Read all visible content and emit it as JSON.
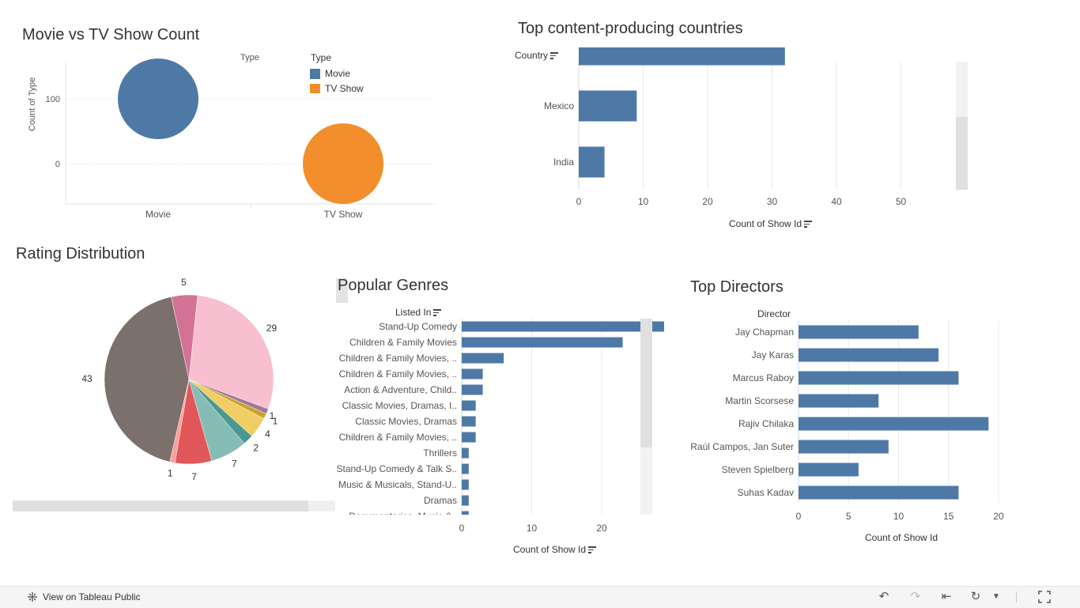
{
  "footer": {
    "link_label": "View on Tableau Public"
  },
  "colors": {
    "blue": "#4e79a7",
    "orange": "#f28e2b",
    "grid": "#e8e8e8",
    "scroll": "#e0e0e0"
  },
  "chart_data": [
    {
      "id": "movie_tv",
      "type": "scatter",
      "title": "Movie vs TV Show Count",
      "categories": [
        "Movie",
        "TV Show"
      ],
      "values": [
        100,
        0
      ],
      "ylabel": "Count of Type",
      "yticks": [
        100,
        0
      ],
      "ylim": [
        -60,
        160
      ],
      "legend_title_clipped": "Type",
      "legend": {
        "title": "Type",
        "items": [
          {
            "label": "Movie",
            "color": "#4e79a7"
          },
          {
            "label": "TV Show",
            "color": "#f28e2b"
          }
        ]
      }
    },
    {
      "id": "countries",
      "type": "bar",
      "title": "Top content-producing countries",
      "row_header": "Country",
      "categories": [
        "",
        "Mexico",
        "India"
      ],
      "values": [
        32,
        9,
        4
      ],
      "xlabel": "Count of Show Id",
      "xticks": [
        0,
        10,
        20,
        30,
        40,
        50
      ],
      "xlim": [
        0,
        58
      ]
    },
    {
      "id": "ratings",
      "type": "pie",
      "title": "Rating Distribution",
      "slices": [
        {
          "value": 43,
          "label": "43",
          "color": "#7b706c"
        },
        {
          "value": 5,
          "label": "5",
          "color": "#d37295"
        },
        {
          "value": 29,
          "label": "29",
          "color": "#f8bfd1"
        },
        {
          "value": 1,
          "label": "1",
          "color": "#a0799a"
        },
        {
          "value": 1,
          "label": "1",
          "color": "#c8a32a"
        },
        {
          "value": 4,
          "label": "4",
          "color": "#f1ce63"
        },
        {
          "value": 2,
          "label": "2",
          "color": "#499894"
        },
        {
          "value": 7,
          "label": "7",
          "color": "#86bcb6"
        },
        {
          "value": 7,
          "label": "7",
          "color": "#e15759"
        },
        {
          "value": 1,
          "label": "1",
          "color": "#ff9d9a"
        }
      ]
    },
    {
      "id": "genres",
      "type": "bar",
      "title": "Popular Genres",
      "row_header": "Listed In",
      "categories": [
        "Stand-Up Comedy",
        "Children & Family Movies",
        "Children & Family Movies, ..",
        "Children & Family Movies, ..",
        "Action & Adventure, Child..",
        "Classic Movies, Dramas, I..",
        "Classic Movies, Dramas",
        "Children & Family Movies, ..",
        "Thrillers",
        "Stand-Up Comedy & Talk S..",
        "Music & Musicals, Stand-U..",
        "Dramas",
        "Documentaries, Music &.."
      ],
      "values": [
        48,
        23,
        6,
        3,
        3,
        2,
        2,
        2,
        1,
        1,
        1,
        1,
        1
      ],
      "xlabel": "Count of Show Id",
      "xticks": [
        0,
        10,
        20,
        30,
        40,
        50
      ],
      "xlim": [
        0,
        54
      ]
    },
    {
      "id": "directors",
      "type": "bar",
      "title": "Top Directors",
      "row_header": "Director",
      "categories": [
        "Jay Chapman",
        "Jay Karas",
        "Marcus Raboy",
        "Martin Scorsese",
        "Rajiv Chilaka",
        "Raúl Campos, Jan Suter",
        "Steven Spielberg",
        "Suhas Kadav"
      ],
      "values": [
        12,
        14,
        16,
        8,
        19,
        9,
        6,
        16
      ],
      "xlabel": "Count of Show Id",
      "xticks": [
        0,
        5,
        10,
        15,
        20
      ],
      "xlim": [
        0,
        20.5
      ]
    }
  ]
}
